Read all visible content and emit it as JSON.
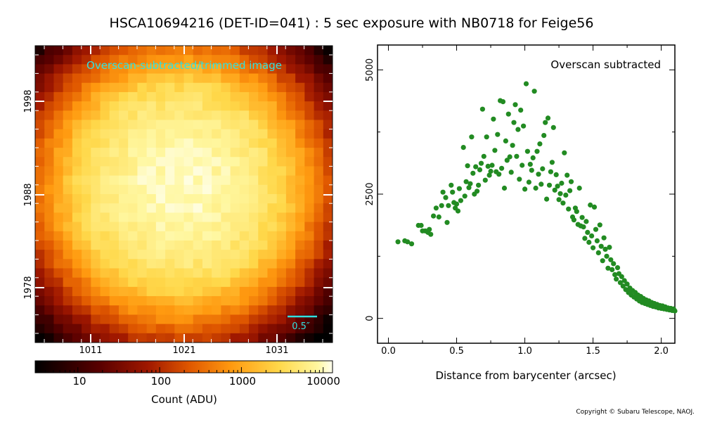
{
  "title": "HSCA10694216 (DET-ID=041) :  5 sec exposure with NB0718 for Feige56",
  "copyright": "Copyright © Subaru Telescope, NAOJ.",
  "image_panel": {
    "label": "Overscan-subtracted/trimmed image",
    "label_color": "#30e0e0",
    "x_ticks": [
      "1011",
      "1021",
      "1031"
    ],
    "y_ticks": [
      "1978",
      "1988",
      "1998"
    ],
    "scale_bar_label": "0.5″",
    "colorbar": {
      "ticks": [
        "10",
        "100",
        "1000",
        "10000"
      ],
      "label": "Count (ADU)",
      "colormap": "afmhot",
      "scale": "log"
    }
  },
  "chart_data": {
    "type": "scatter",
    "annotation": "Overscan subtracted",
    "xlabel": "Distance from barycenter (arcsec)",
    "ylabel": "",
    "x_ticks": [
      "0.0",
      "0.5",
      "1.0",
      "1.5",
      "2.0"
    ],
    "y_ticks": [
      "0",
      "2500",
      "5000"
    ],
    "xlim": [
      -0.08,
      2.1
    ],
    "ylim": [
      -500,
      5500
    ],
    "marker_color": "#228b22",
    "points": [
      [
        0.07,
        1540
      ],
      [
        0.12,
        1560
      ],
      [
        0.14,
        1540
      ],
      [
        0.17,
        1500
      ],
      [
        0.22,
        1870
      ],
      [
        0.24,
        1870
      ],
      [
        0.25,
        1760
      ],
      [
        0.27,
        1760
      ],
      [
        0.29,
        1730
      ],
      [
        0.3,
        1790
      ],
      [
        0.31,
        1690
      ],
      [
        0.33,
        2060
      ],
      [
        0.35,
        2220
      ],
      [
        0.37,
        2040
      ],
      [
        0.39,
        2270
      ],
      [
        0.4,
        2540
      ],
      [
        0.42,
        2430
      ],
      [
        0.43,
        1930
      ],
      [
        0.44,
        2270
      ],
      [
        0.46,
        2680
      ],
      [
        0.47,
        2540
      ],
      [
        0.48,
        2330
      ],
      [
        0.49,
        2220
      ],
      [
        0.5,
        2300
      ],
      [
        0.51,
        2160
      ],
      [
        0.52,
        2610
      ],
      [
        0.53,
        2370
      ],
      [
        0.55,
        3440
      ],
      [
        0.56,
        2460
      ],
      [
        0.57,
        2750
      ],
      [
        0.58,
        3070
      ],
      [
        0.59,
        2630
      ],
      [
        0.6,
        2710
      ],
      [
        0.61,
        3650
      ],
      [
        0.62,
        2920
      ],
      [
        0.63,
        2500
      ],
      [
        0.64,
        3050
      ],
      [
        0.65,
        2560
      ],
      [
        0.66,
        2680
      ],
      [
        0.67,
        2990
      ],
      [
        0.68,
        3120
      ],
      [
        0.69,
        4210
      ],
      [
        0.7,
        3260
      ],
      [
        0.71,
        2780
      ],
      [
        0.72,
        3650
      ],
      [
        0.73,
        3060
      ],
      [
        0.74,
        2880
      ],
      [
        0.75,
        2960
      ],
      [
        0.76,
        3080
      ],
      [
        0.77,
        4010
      ],
      [
        0.78,
        3380
      ],
      [
        0.79,
        2950
      ],
      [
        0.8,
        3700
      ],
      [
        0.81,
        2900
      ],
      [
        0.82,
        4380
      ],
      [
        0.83,
        3020
      ],
      [
        0.84,
        4360
      ],
      [
        0.85,
        2620
      ],
      [
        0.86,
        3570
      ],
      [
        0.87,
        3180
      ],
      [
        0.88,
        4110
      ],
      [
        0.89,
        3250
      ],
      [
        0.9,
        2940
      ],
      [
        0.91,
        3480
      ],
      [
        0.92,
        3940
      ],
      [
        0.93,
        4300
      ],
      [
        0.94,
        3260
      ],
      [
        0.95,
        3800
      ],
      [
        0.96,
        2800
      ],
      [
        0.97,
        4190
      ],
      [
        0.98,
        3080
      ],
      [
        0.99,
        3870
      ],
      [
        1.0,
        2600
      ],
      [
        1.01,
        4720
      ],
      [
        1.02,
        3360
      ],
      [
        1.03,
        2740
      ],
      [
        1.04,
        3100
      ],
      [
        1.05,
        2980
      ],
      [
        1.06,
        3230
      ],
      [
        1.07,
        4570
      ],
      [
        1.08,
        2620
      ],
      [
        1.09,
        3360
      ],
      [
        1.1,
        2900
      ],
      [
        1.11,
        3510
      ],
      [
        1.12,
        2700
      ],
      [
        1.13,
        3010
      ],
      [
        1.14,
        3680
      ],
      [
        1.15,
        3940
      ],
      [
        1.16,
        2400
      ],
      [
        1.17,
        4030
      ],
      [
        1.18,
        2680
      ],
      [
        1.19,
        2950
      ],
      [
        1.2,
        3140
      ],
      [
        1.21,
        3840
      ],
      [
        1.22,
        2580
      ],
      [
        1.23,
        2890
      ],
      [
        1.24,
        2660
      ],
      [
        1.25,
        2390
      ],
      [
        1.26,
        2510
      ],
      [
        1.27,
        2720
      ],
      [
        1.28,
        2320
      ],
      [
        1.29,
        3330
      ],
      [
        1.3,
        2480
      ],
      [
        1.31,
        2880
      ],
      [
        1.32,
        2200
      ],
      [
        1.33,
        2570
      ],
      [
        1.34,
        2750
      ],
      [
        1.35,
        2040
      ],
      [
        1.36,
        1980
      ],
      [
        1.37,
        2220
      ],
      [
        1.38,
        2150
      ],
      [
        1.39,
        1890
      ],
      [
        1.4,
        2620
      ],
      [
        1.41,
        1860
      ],
      [
        1.42,
        2030
      ],
      [
        1.43,
        1840
      ],
      [
        1.44,
        1610
      ],
      [
        1.45,
        1950
      ],
      [
        1.46,
        1730
      ],
      [
        1.47,
        1530
      ],
      [
        1.48,
        2280
      ],
      [
        1.49,
        1660
      ],
      [
        1.5,
        1420
      ],
      [
        1.51,
        2240
      ],
      [
        1.52,
        1790
      ],
      [
        1.53,
        1560
      ],
      [
        1.54,
        1320
      ],
      [
        1.55,
        1880
      ],
      [
        1.56,
        1450
      ],
      [
        1.57,
        1160
      ],
      [
        1.58,
        1620
      ],
      [
        1.59,
        1390
      ],
      [
        1.6,
        1250
      ],
      [
        1.61,
        1010
      ],
      [
        1.62,
        1430
      ],
      [
        1.63,
        1180
      ],
      [
        1.64,
        980
      ],
      [
        1.65,
        1100
      ],
      [
        1.66,
        880
      ],
      [
        1.67,
        790
      ],
      [
        1.68,
        1020
      ],
      [
        1.69,
        900
      ],
      [
        1.7,
        720
      ],
      [
        1.71,
        840
      ],
      [
        1.72,
        650
      ],
      [
        1.73,
        760
      ],
      [
        1.74,
        580
      ],
      [
        1.75,
        690
      ],
      [
        1.76,
        520
      ],
      [
        1.77,
        610
      ],
      [
        1.78,
        470
      ],
      [
        1.79,
        560
      ],
      [
        1.8,
        430
      ],
      [
        1.81,
        520
      ],
      [
        1.82,
        390
      ],
      [
        1.83,
        470
      ],
      [
        1.84,
        350
      ],
      [
        1.85,
        440
      ],
      [
        1.86,
        320
      ],
      [
        1.87,
        400
      ],
      [
        1.88,
        300
      ],
      [
        1.89,
        370
      ],
      [
        1.9,
        280
      ],
      [
        1.91,
        350
      ],
      [
        1.92,
        260
      ],
      [
        1.93,
        320
      ],
      [
        1.94,
        240
      ],
      [
        1.95,
        300
      ],
      [
        1.96,
        230
      ],
      [
        1.97,
        280
      ],
      [
        1.98,
        210
      ],
      [
        1.99,
        260
      ],
      [
        2.0,
        200
      ],
      [
        2.01,
        250
      ],
      [
        2.02,
        190
      ],
      [
        2.03,
        230
      ],
      [
        2.04,
        180
      ],
      [
        2.05,
        210
      ],
      [
        2.06,
        170
      ],
      [
        2.07,
        200
      ],
      [
        2.08,
        160
      ],
      [
        2.09,
        190
      ],
      [
        2.1,
        150
      ]
    ]
  }
}
